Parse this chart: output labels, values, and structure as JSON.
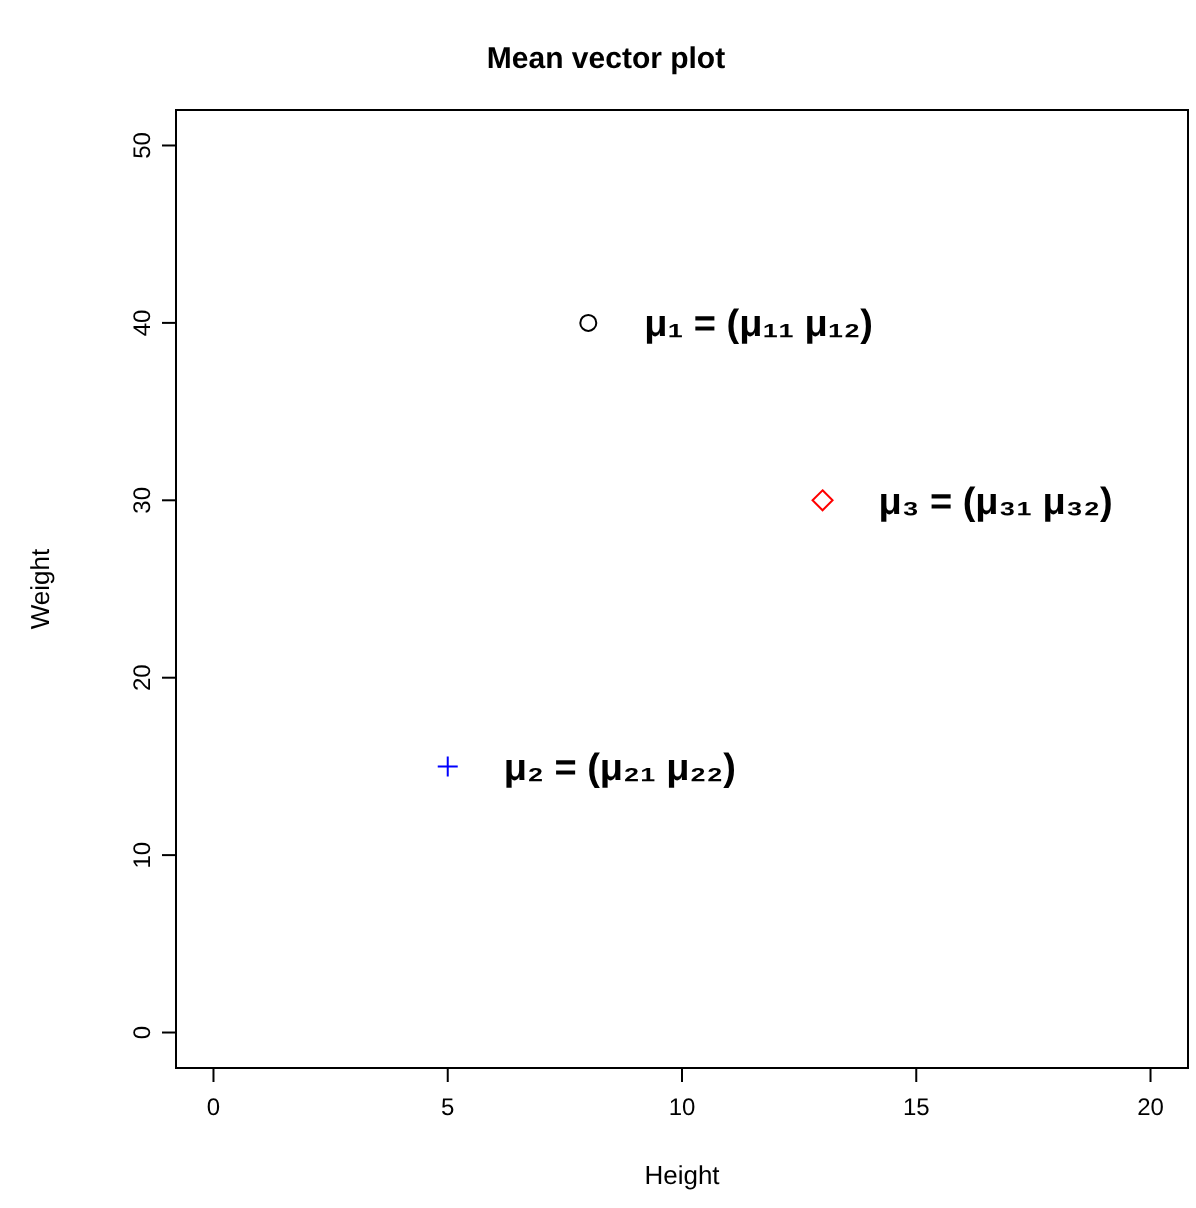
{
  "chart_data": {
    "type": "scatter",
    "title": "Mean vector plot",
    "xlabel": "Height",
    "ylabel": "Weight",
    "xlim": [
      -0.8,
      20.8
    ],
    "ylim": [
      -2,
      52
    ],
    "xticks": [
      0,
      5,
      10,
      15,
      20
    ],
    "yticks": [
      0,
      10,
      20,
      30,
      40,
      50
    ],
    "series": [
      {
        "color": "#000000",
        "marker": "circle",
        "x": [
          8
        ],
        "values": [
          40
        ]
      },
      {
        "color": "#0000ff",
        "marker": "cross",
        "x": [
          5
        ],
        "values": [
          15
        ]
      },
      {
        "color": "#ff0000",
        "marker": "diamond",
        "x": [
          13
        ],
        "values": [
          30
        ]
      }
    ],
    "annotations": [
      {
        "text": "μ₁ = (μ₁₁ μ₁₂)",
        "x": 8,
        "y": 40
      },
      {
        "text": "μ₂ = (μ₂₁ μ₂₂)",
        "x": 5,
        "y": 15
      },
      {
        "text": "μ₃ = (μ₃₁ μ₃₂)",
        "x": 13,
        "y": 30
      }
    ]
  }
}
